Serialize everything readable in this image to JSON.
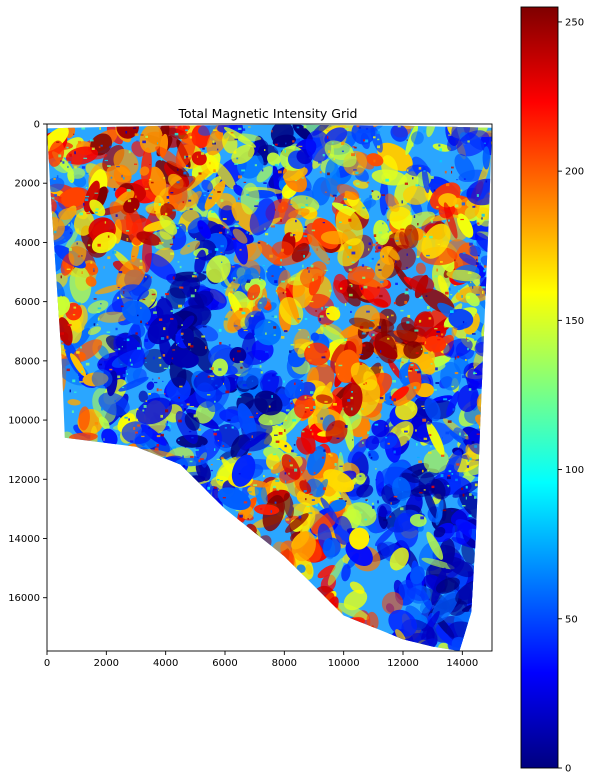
{
  "chart_data": {
    "type": "heatmap",
    "title": "Total Magnetic Intensity Grid",
    "xlabel": "",
    "ylabel": "",
    "xlim": [
      0,
      15000
    ],
    "ylim": [
      17800,
      0
    ],
    "x_ticks": [
      0,
      2000,
      4000,
      6000,
      8000,
      10000,
      12000,
      14000
    ],
    "y_ticks": [
      0,
      2000,
      4000,
      6000,
      8000,
      10000,
      12000,
      14000,
      16000
    ],
    "x_tick_labels": [
      "0",
      "2000",
      "4000",
      "6000",
      "8000",
      "10000",
      "12000",
      "14000"
    ],
    "y_tick_labels": [
      "0",
      "2000",
      "4000",
      "6000",
      "8000",
      "10000",
      "12000",
      "14000",
      "16000"
    ],
    "colormap": "jet",
    "colormap_stops": [
      "#00007f",
      "#0000ff",
      "#007fff",
      "#00ffff",
      "#7fff7f",
      "#ffff00",
      "#ff7f00",
      "#ff0000",
      "#7f0000"
    ],
    "colorbar": {
      "range": [
        0,
        255
      ],
      "ticks": [
        0,
        50,
        100,
        150,
        200,
        250
      ],
      "tick_labels": [
        "0",
        "50",
        "100",
        "150",
        "200",
        "250"
      ]
    },
    "data_outline": [
      [
        0,
        150
      ],
      [
        1000,
        120
      ],
      [
        4000,
        60
      ],
      [
        8000,
        20
      ],
      [
        12000,
        60
      ],
      [
        15000,
        130
      ],
      [
        14900,
        3000
      ],
      [
        14650,
        9000
      ],
      [
        14450,
        14000
      ],
      [
        14300,
        16500
      ],
      [
        13900,
        17800
      ],
      [
        13000,
        17650
      ],
      [
        12000,
        17400
      ],
      [
        10000,
        16600
      ],
      [
        9000,
        15600
      ],
      [
        8000,
        14600
      ],
      [
        6000,
        13000
      ],
      [
        4500,
        11500
      ],
      [
        3000,
        10900
      ],
      [
        600,
        10600
      ],
      [
        500,
        8000
      ],
      [
        300,
        5000
      ],
      [
        100,
        2000
      ],
      [
        0,
        150
      ]
    ],
    "grid": false,
    "legend": "none"
  }
}
